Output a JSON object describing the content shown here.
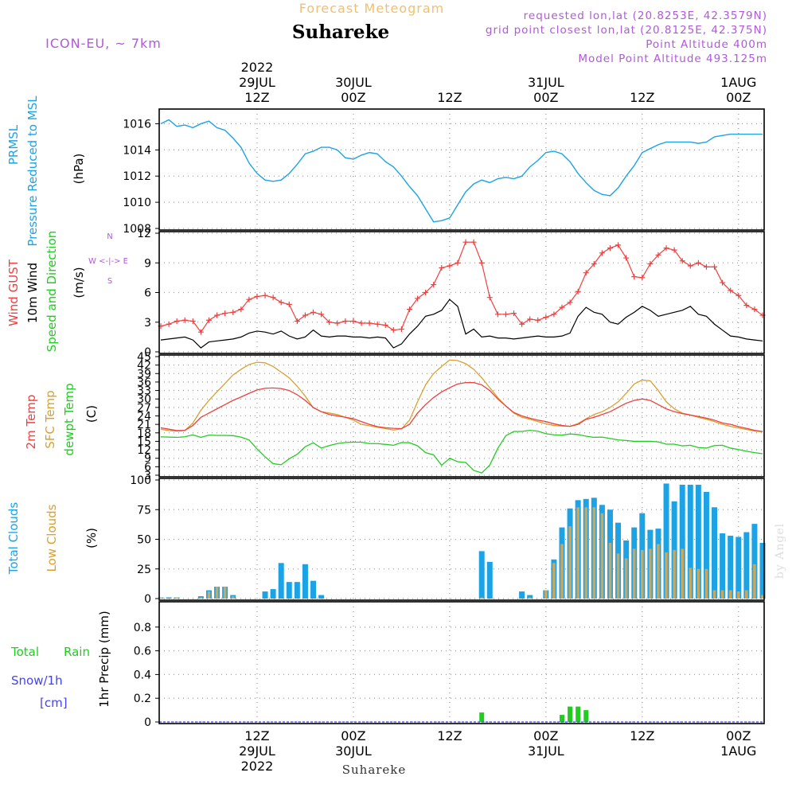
{
  "header": {
    "product": "Forecast Meteogram",
    "location": "Suhareke",
    "model": "ICON-EU, ~ 7km",
    "requested": "requested lon,lat (20.8253E, 42.3579N)",
    "grid_point": "grid point closest lon,lat (20.8125E, 42.375N)",
    "point_altitude": "Point Altitude 400m",
    "model_altitude": "Model Point Altitude 493.125m",
    "footer_location": "Suhareke",
    "watermark": "by Angel"
  },
  "colors": {
    "pressure": "#1ca3e6",
    "gust": "#ee4040",
    "wind": "#000000",
    "t2m": "#ee4040",
    "sfc": "#d9a030",
    "dewpt": "#22cc22",
    "total_cloud": "#1ca3e6",
    "low_cloud": "#c8a860",
    "rain": "#22cc22",
    "snow": "#4444ee",
    "purple": "#b05ad8",
    "grid": "#a0a0a0"
  },
  "time_axis": {
    "top_labels": [
      {
        "h": 12,
        "lines": [
          "2022",
          "29JUL",
          "12Z"
        ]
      },
      {
        "h": 24,
        "lines": [
          "30JUL",
          "00Z"
        ]
      },
      {
        "h": 36,
        "lines": [
          "12Z"
        ]
      },
      {
        "h": 48,
        "lines": [
          "31JUL",
          "00Z"
        ]
      },
      {
        "h": 60,
        "lines": [
          "12Z"
        ]
      },
      {
        "h": 72,
        "lines": [
          "1AUG",
          "00Z"
        ]
      }
    ],
    "bottom_labels": [
      {
        "h": 12,
        "lines": [
          "12Z",
          "29JUL",
          "2022"
        ]
      },
      {
        "h": 24,
        "lines": [
          "00Z",
          "30JUL"
        ]
      },
      {
        "h": 36,
        "lines": [
          "12Z"
        ]
      },
      {
        "h": 48,
        "lines": [
          "00Z",
          "31JUL"
        ]
      },
      {
        "h": 60,
        "lines": [
          "12Z"
        ]
      },
      {
        "h": 72,
        "lines": [
          "00Z",
          "1AUG"
        ]
      }
    ]
  },
  "panel_labels": {
    "pressure": {
      "name1": "PRMSL",
      "name2": "Pressure Reduced to MSL",
      "unit": "(hPa)"
    },
    "wind": {
      "gust": "Wind GUST",
      "wind10": "10m Wind",
      "dir": "Speed and Direction",
      "unit": "(m/s)",
      "compass_n": "N",
      "compass_ew": "W <-|-> E",
      "compass_s": "S"
    },
    "temp": {
      "t2m": "2m Temp",
      "sfc": "SFC Temp",
      "dew": "dewpt Temp",
      "unit": "(C)"
    },
    "cloud": {
      "total": "Total Clouds",
      "low": "Low Clouds",
      "unit": "(%)"
    },
    "precip": {
      "rain_a": "Total",
      "rain_b": "Rain",
      "snow": "Snow/1h",
      "snow_unit": "[cm]",
      "unit": "1hr Precip (mm)"
    }
  },
  "chart_data": [
    {
      "type": "line",
      "title": "PRMSL Pressure Reduced to MSL",
      "ylabel": "hPa",
      "ylim": [
        1008,
        1017
      ],
      "yticks": [
        "1008",
        "1010",
        "1012",
        "1014",
        "1016"
      ],
      "x_hours": [
        0,
        1,
        2,
        3,
        4,
        5,
        6,
        7,
        8,
        9,
        10,
        11,
        12,
        13,
        14,
        15,
        16,
        17,
        18,
        19,
        20,
        21,
        22,
        23,
        24,
        25,
        26,
        27,
        28,
        29,
        30,
        31,
        32,
        33,
        34,
        35,
        36,
        37,
        38,
        39,
        40,
        41,
        42,
        43,
        44,
        45,
        46,
        47,
        48,
        49,
        50,
        51,
        52,
        53,
        54,
        55,
        56,
        57,
        58,
        59,
        60,
        61,
        62,
        63,
        64,
        65,
        66,
        67,
        68,
        69,
        70,
        71,
        72,
        73,
        74,
        75
      ],
      "values": [
        1016.0,
        1016.3,
        1015.8,
        1015.9,
        1015.7,
        1016.0,
        1016.2,
        1015.7,
        1015.5,
        1014.9,
        1014.2,
        1013.0,
        1012.2,
        1011.7,
        1011.6,
        1011.7,
        1012.2,
        1012.9,
        1013.7,
        1013.9,
        1014.2,
        1014.2,
        1014.0,
        1013.4,
        1013.3,
        1013.6,
        1013.8,
        1013.7,
        1013.1,
        1012.7,
        1012.0,
        1011.2,
        1010.5,
        1009.5,
        1008.5,
        1008.6,
        1008.8,
        1009.8,
        1010.8,
        1011.4,
        1011.7,
        1011.5,
        1011.8,
        1011.9,
        1011.8,
        1012.0,
        1012.7,
        1013.2,
        1013.8,
        1013.9,
        1013.7,
        1013.1,
        1012.2,
        1011.5,
        1010.9,
        1010.6,
        1010.5,
        1011.1,
        1012.0,
        1012.8,
        1013.8,
        1014.1,
        1014.4,
        1014.6,
        1014.6,
        1014.6,
        1014.6,
        1014.5,
        1014.6,
        1015.0,
        1015.1,
        1015.2,
        1015.2,
        1015.2,
        1015.2,
        1015.2
      ]
    },
    {
      "type": "line",
      "title": "Wind GUST / 10m Wind Speed and Direction",
      "ylabel": "m/s",
      "ylim": [
        0,
        12
      ],
      "yticks": [
        "0",
        "3",
        "6",
        "9",
        "12"
      ],
      "series": [
        {
          "name": "Wind GUST",
          "values": [
            2.6,
            2.8,
            3.1,
            3.2,
            3.1,
            2.0,
            3.2,
            3.7,
            3.9,
            4.0,
            4.3,
            5.3,
            5.6,
            5.7,
            5.5,
            5.0,
            4.8,
            3.1,
            3.7,
            4.0,
            3.8,
            3.0,
            2.9,
            3.1,
            3.1,
            2.9,
            2.9,
            2.8,
            2.7,
            2.2,
            2.3,
            4.3,
            5.4,
            6.0,
            6.8,
            8.5,
            8.7,
            9.0,
            11.1,
            11.1,
            9.0,
            5.5,
            3.8,
            3.8,
            3.9,
            2.8,
            3.3,
            3.2,
            3.5,
            3.8,
            4.5,
            5.0,
            6.1,
            8.0,
            8.9,
            10.0,
            10.5,
            10.8,
            9.5,
            7.6,
            7.5,
            8.9,
            9.8,
            10.5,
            10.3,
            9.2,
            8.7,
            9.0,
            8.6,
            8.6,
            7.0,
            6.2,
            5.7,
            4.7,
            4.3,
            3.7
          ]
        },
        {
          "name": "10m Wind",
          "values": [
            1.2,
            1.3,
            1.4,
            1.5,
            1.2,
            0.4,
            1.0,
            1.1,
            1.2,
            1.3,
            1.5,
            1.9,
            2.1,
            2.0,
            1.8,
            2.1,
            1.6,
            1.3,
            1.5,
            2.2,
            1.6,
            1.5,
            1.6,
            1.6,
            1.5,
            1.5,
            1.4,
            1.5,
            1.4,
            0.4,
            0.8,
            1.8,
            2.6,
            3.6,
            3.8,
            4.2,
            5.3,
            4.6,
            1.8,
            2.3,
            1.5,
            1.6,
            1.4,
            1.4,
            1.3,
            1.4,
            1.5,
            1.6,
            1.5,
            1.5,
            1.6,
            1.9,
            3.6,
            4.5,
            4.0,
            3.8,
            3.0,
            2.8,
            3.5,
            4.0,
            4.6,
            4.2,
            3.6,
            3.8,
            4.0,
            4.2,
            4.6,
            3.8,
            3.6,
            2.8,
            2.2,
            1.6,
            1.5,
            1.3,
            1.2,
            1.1
          ]
        }
      ]
    },
    {
      "type": "line",
      "title": "2m Temp / SFC Temp / dewpt Temp",
      "ylabel": "C",
      "ylim": [
        3,
        45
      ],
      "yticks": [
        "3",
        "6",
        "9",
        "12",
        "15",
        "18",
        "21",
        "24",
        "27",
        "30",
        "33",
        "36",
        "39",
        "42",
        "45"
      ],
      "series": [
        {
          "name": "2m Temp",
          "values": [
            19.8,
            19.3,
            18.8,
            18.9,
            20.6,
            23.5,
            25.0,
            26.5,
            28.0,
            29.5,
            30.7,
            32.0,
            33.2,
            33.8,
            33.9,
            33.7,
            33.0,
            31.5,
            29.5,
            27.0,
            25.5,
            24.5,
            24.0,
            23.5,
            23.0,
            22.0,
            21.0,
            20.2,
            19.8,
            19.6,
            19.5,
            21.0,
            25.0,
            28.0,
            30.5,
            32.5,
            34.0,
            35.3,
            35.8,
            35.8,
            35.0,
            33.0,
            30.0,
            27.5,
            25.2,
            24.0,
            23.2,
            22.5,
            22.0,
            21.2,
            20.6,
            20.3,
            21.0,
            22.8,
            23.5,
            24.5,
            25.5,
            27.0,
            28.5,
            29.5,
            30.0,
            29.5,
            28.0,
            26.5,
            25.5,
            24.8,
            24.3,
            23.8,
            23.2,
            22.5,
            21.5,
            21.0,
            20.2,
            19.6,
            18.9,
            18.5
          ]
        },
        {
          "name": "SFC Temp",
          "values": [
            19.3,
            18.8,
            18.6,
            18.8,
            21.5,
            26.0,
            29.5,
            32.5,
            35.5,
            38.5,
            40.5,
            42.2,
            43.0,
            42.8,
            41.5,
            39.5,
            37.5,
            34.5,
            31.0,
            26.9,
            25.5,
            25.0,
            24.5,
            23.5,
            22.5,
            21.0,
            20.5,
            20.0,
            19.5,
            19.0,
            19.4,
            22.5,
            29.0,
            35.0,
            39.0,
            41.5,
            43.8,
            43.6,
            42.5,
            40.5,
            37.5,
            34.0,
            30.5,
            27.5,
            25.0,
            23.5,
            22.8,
            22.0,
            21.2,
            20.6,
            20.4,
            20.3,
            21.3,
            23.0,
            24.5,
            25.5,
            27.0,
            29.0,
            32.0,
            35.3,
            36.7,
            36.4,
            33.0,
            29.0,
            26.5,
            25.0,
            24.3,
            23.5,
            22.8,
            22.0,
            21.0,
            20.3,
            19.7,
            19.2,
            18.6,
            18.4
          ]
        },
        {
          "name": "dewpt Temp",
          "values": [
            16.6,
            16.5,
            16.4,
            16.6,
            17.3,
            16.4,
            17.2,
            17.1,
            17.1,
            17.0,
            16.5,
            15.5,
            12.3,
            9.5,
            7.1,
            6.7,
            8.8,
            10.4,
            13.1,
            14.5,
            12.6,
            13.5,
            14.2,
            14.6,
            14.7,
            14.7,
            14.2,
            14.2,
            13.9,
            13.6,
            14.6,
            14.5,
            13.4,
            11.0,
            10.2,
            6.5,
            9.0,
            7.8,
            7.5,
            4.7,
            3.8,
            6.6,
            12.5,
            17.0,
            18.5,
            18.5,
            18.9,
            18.6,
            17.7,
            17.3,
            17.2,
            17.6,
            17.4,
            16.8,
            16.4,
            16.5,
            16.0,
            15.5,
            15.3,
            15.0,
            15.0,
            15.0,
            14.8,
            14.0,
            14.0,
            13.4,
            13.6,
            12.8,
            12.6,
            13.5,
            13.6,
            12.6,
            12.1,
            11.5,
            11.0,
            10.6
          ]
        }
      ]
    },
    {
      "type": "bar",
      "title": "Total Clouds / Low Clouds",
      "ylabel": "%",
      "ylim": [
        0,
        100
      ],
      "yticks": [
        "0",
        "25",
        "50",
        "75",
        "100"
      ],
      "series": [
        {
          "name": "Total Clouds",
          "values": [
            1,
            1,
            1,
            0,
            0,
            2,
            7,
            10,
            10,
            3,
            0,
            0,
            0,
            6,
            8,
            30,
            14,
            14,
            29,
            15,
            3,
            0,
            0,
            0,
            0,
            0,
            0,
            0,
            0,
            0,
            0,
            0,
            0,
            0,
            0,
            0,
            0,
            0,
            0,
            0,
            40,
            31,
            0,
            0,
            0,
            6,
            3,
            0,
            7,
            33,
            60,
            76,
            83,
            84,
            85,
            79,
            75,
            64,
            49,
            60,
            72,
            58,
            59,
            97,
            82,
            96,
            96,
            96,
            90,
            77,
            55,
            53,
            52,
            56,
            63,
            47
          ]
        },
        {
          "name": "Low Clouds",
          "values": [
            1,
            0,
            1,
            0,
            0,
            1,
            6,
            10,
            10,
            2,
            0,
            0,
            0,
            0,
            0,
            0,
            0,
            0,
            0,
            0,
            0,
            0,
            0,
            0,
            0,
            0,
            0,
            0,
            0,
            0,
            0,
            0,
            0,
            0,
            0,
            0,
            0,
            0,
            0,
            0,
            1,
            0,
            0,
            0,
            0,
            0,
            1,
            0,
            7,
            30,
            46,
            61,
            77,
            77,
            77,
            72,
            47,
            38,
            34,
            42,
            41,
            42,
            46,
            39,
            41,
            42,
            26,
            25,
            25,
            7,
            7,
            7,
            6,
            7,
            29,
            3
          ]
        }
      ]
    },
    {
      "type": "bar",
      "title": "1hr Precip",
      "ylabel": "mm",
      "ylim": [
        0,
        1.0
      ],
      "yticks": [
        "0",
        "0.2",
        "0.4",
        "0.6",
        "0.8"
      ],
      "series": [
        {
          "name": "Total Rain",
          "values": [
            0,
            0,
            0,
            0,
            0,
            0,
            0,
            0,
            0,
            0,
            0,
            0,
            0,
            0,
            0,
            0,
            0,
            0,
            0,
            0,
            0,
            0,
            0,
            0,
            0,
            0,
            0,
            0,
            0,
            0,
            0,
            0,
            0,
            0,
            0,
            0,
            0,
            0,
            0,
            0,
            0.08,
            0,
            0,
            0,
            0,
            0,
            0,
            0,
            0,
            0,
            0.06,
            0.13,
            0.13,
            0.1,
            0,
            0,
            0,
            0,
            0,
            0,
            0,
            0,
            0,
            0,
            0,
            0,
            0,
            0,
            0,
            0,
            0,
            0,
            0,
            0,
            0,
            0
          ]
        },
        {
          "name": "Snow/1h",
          "values": [
            0,
            0,
            0,
            0,
            0,
            0,
            0,
            0,
            0,
            0,
            0,
            0,
            0,
            0,
            0,
            0,
            0,
            0,
            0,
            0,
            0,
            0,
            0,
            0,
            0,
            0,
            0,
            0,
            0,
            0,
            0,
            0,
            0,
            0,
            0,
            0,
            0,
            0,
            0,
            0,
            0,
            0,
            0,
            0,
            0,
            0,
            0,
            0,
            0,
            0,
            0,
            0,
            0,
            0,
            0,
            0,
            0,
            0,
            0,
            0,
            0,
            0,
            0,
            0,
            0,
            0,
            0,
            0,
            0,
            0,
            0,
            0,
            0,
            0,
            0,
            0
          ]
        }
      ]
    }
  ]
}
